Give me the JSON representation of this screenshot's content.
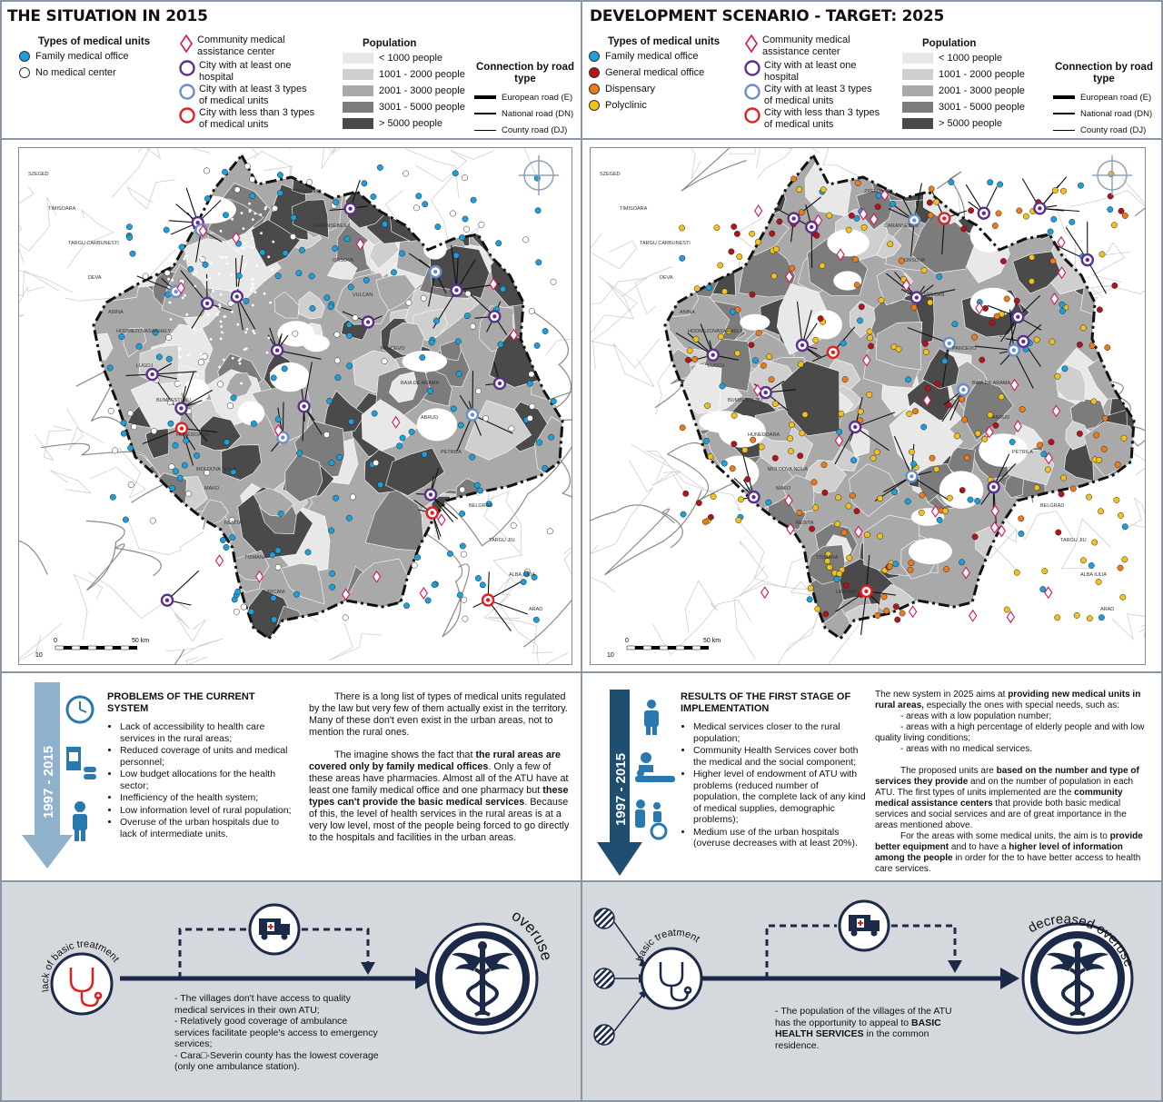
{
  "left": {
    "title": "THE SITUATION IN 2015",
    "legend_types_title": "Types of medical units",
    "types": [
      {
        "label": "Family medical office",
        "color": "#1aa0dc"
      },
      {
        "label": "No medical center",
        "color": "#ffffff"
      }
    ],
    "scale": {
      "zero": "0",
      "end": "50 km",
      "ten": "10"
    },
    "text_heading": "PROBLEMS OF THE CURRENT SYSTEM",
    "period": "1997 - 2015",
    "bullets": [
      "Lack of accessibility to health care services in the rural areas;",
      "Reduced coverage of units and medical personnel;",
      "Low budget allocations for the health sector;",
      "Inefficiency of the health system;",
      "Low information level of rural population;",
      "Overuse of the urban hospitals due to lack of intermediate units."
    ],
    "para1": "There is a long list of types of medical units regulated by the law but very few of them actually exist in the territory. Many of these don't even exist in the urban areas, not to mention the rural ones.",
    "para2a": "The imagine shows the fact that ",
    "para2b": "the rural areas are covered only by family medical offices",
    "para2c": ". Only a few of these areas have pharmacies. Almost all of the ATU have at least one family medical office and one pharmacy but ",
    "para2d": "these types can't provide the basic medical services",
    "para2e": ". Because of this, the level of health services in the rural areas is at a very low level, most of the people being forced to go directly to the hospitals and facilities in the urban areas.",
    "flow_label": "lack of basic treatment",
    "flow_end": "overuse",
    "flow_notes": [
      "- The villages don't have access to quality medical services in their own ATU;",
      "- Relatively good coverage of ambulance services facilitate people's access to emergency services;",
      "- Cara□-Severin county has the lowest coverage (only one ambulance station)."
    ]
  },
  "right": {
    "title": "DEVELOPMENT SCENARIO - TARGET: 2025",
    "legend_types_title": "Types of medical units",
    "types": [
      {
        "label": "Family medical office",
        "color": "#1aa0dc"
      },
      {
        "label": "General medical office",
        "color": "#b3131b"
      },
      {
        "label": "Dispensary",
        "color": "#ef7b16"
      },
      {
        "label": "Polyclinic",
        "color": "#f2c21a"
      }
    ],
    "scale": {
      "zero": "0",
      "end": "50 km",
      "ten": "10"
    },
    "text_heading": "RESULTS OF THE FIRST STAGE OF IMPLEMENTATION",
    "period": "1997 - 2015",
    "bullets": [
      "Medical services closer to the rural population;",
      "Community Health Services cover both the medical and the social component;",
      "Higher level of endowment of ATU with problems (reduced number of population, the complete lack of any kind of medical supplies, demographic problems);",
      "Medium use of the urban hospitals (overuse decreases with at least 20%)."
    ],
    "p1a": "The new system in 2025 aims at ",
    "p1b": "providing new medical units in rural areas,",
    "p1c": " especially the ones with special needs, such as:",
    "sub": [
      "- areas with a low population number;",
      "- areas with a high percentage of elderly people and with low quality living conditions;",
      "- areas with no medical services."
    ],
    "p2a": "The proposed units are ",
    "p2b": "based on the number and type of services they provide",
    "p2c": " and on the number of population in each ATU. The first types of units implemented are the ",
    "p2d": "community medical assistance centers",
    "p2e": " that provide both basic medical services and social services and are of great importance in the areas mentioned above.",
    "p3a": "For the areas with some medical units, the aim is to ",
    "p3b": "provide better equipment",
    "p3c": " and to have a ",
    "p3d": "higher level of information among the people",
    "p3e": " in order for the to have better access to health care services.",
    "flow_label": "basic treatment",
    "flow_end": "decreased overuse",
    "flow_note_a": "- The population of the villages of the ATU has the opportunity to appeal to ",
    "flow_note_b": "BASIC HEALTH SERVICES",
    "flow_note_c": " in the common residence."
  },
  "shared_legend": {
    "community": "Community medical assistance center",
    "hospital": "City with at least one hospital",
    "three_types": "City with at least 3 types of medical units",
    "less_three": "City with less than 3 types of medical units",
    "population_title": "Population",
    "population": [
      "< 1000 people",
      "1001 - 2000 people",
      "2001 - 3000 people",
      "3001 - 5000 people",
      "> 5000 people"
    ],
    "population_colors": [
      "#e8e8e8",
      "#cfcfcf",
      "#a9a9a9",
      "#7c7c7c",
      "#4a4a4a"
    ],
    "connection_title": "Connection by road type",
    "roads": [
      "European road (E)",
      "National road (DN)",
      "County road (DJ)"
    ]
  },
  "map_labels": [
    "SZEGED",
    "HODMEZOVASARHELY",
    "MAKO",
    "ZRENJANIN",
    "PANCEVO",
    "BELGRAD",
    "TIMISOARA",
    "LUGOJ",
    "RESITA",
    "CARANSEBES",
    "BAIA DE ARAMA",
    "TARGU JIU",
    "TARGU CARBUNESTI",
    "BUMBESTI-JIU",
    "TISMANA",
    "ORSOVA",
    "ABRUD",
    "ALBA IULIA",
    "DEVA",
    "HUNEDOARA",
    "URICANI",
    "VULCAN",
    "PETRILA",
    "ARAD",
    "ANINA",
    "MOLDOVA NOUA"
  ],
  "colors": {
    "frame": "#8a96a3",
    "arrow_light": "#8fb1cc",
    "arrow_dark": "#1f4f70",
    "navy": "#1b2a48",
    "pink": "#d8155e",
    "purple": "#5b2f8e",
    "lightblue": "#6a8fc8",
    "red": "#e02020",
    "footer_bg": "#d5d8dc"
  }
}
